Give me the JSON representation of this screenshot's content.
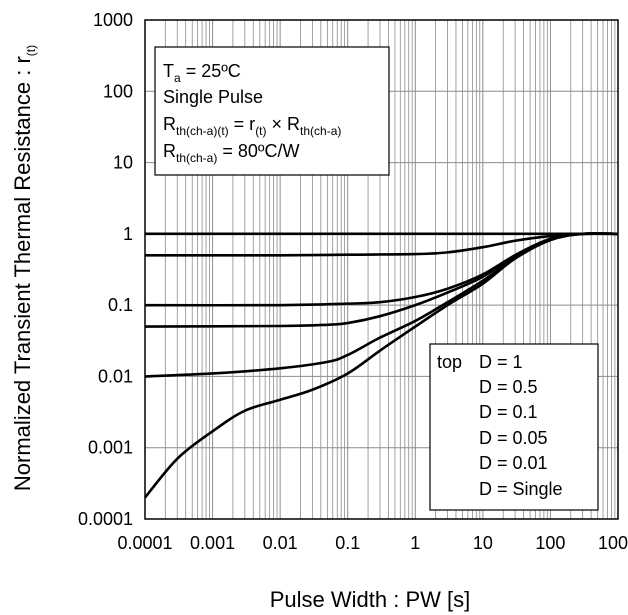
{
  "chart_data": {
    "type": "line",
    "xlabel": "Pulse Width : PW [s]",
    "ylabel_main": "Normalized Transient Thermal Resistance : r",
    "ylabel_sub": "(t)",
    "x_scale": "log",
    "y_scale": "log",
    "xlim": [
      0.0001,
      1000
    ],
    "ylim": [
      0.0001,
      1000
    ],
    "x_ticks": [
      "0.0001",
      "0.001",
      "0.01",
      "0.1",
      "1",
      "10",
      "100",
      "1000"
    ],
    "y_ticks": [
      "1000",
      "100",
      "10",
      "1",
      "0.1",
      "0.01",
      "0.001",
      "0.0001"
    ],
    "grid": true,
    "info_box": {
      "line1_main": "T",
      "line1_sub": "a",
      "line1_rest": " = 25ºC",
      "line2": "Single Pulse",
      "line3_a": "R",
      "line3_a_sub": "th(ch-a)(t)",
      "line3_b": " = r",
      "line3_b_sub": "(t)",
      "line3_c": " × R",
      "line3_c_sub": "th(ch-a)",
      "line4_a": "R",
      "line4_a_sub": "th(ch-a)",
      "line4_b": " = 80ºC/W"
    },
    "legend": {
      "placement": "bottom-right",
      "prefix": "top",
      "entries": [
        "D = 1",
        "D = 0.5",
        "D = 0.1",
        "D = 0.05",
        "D = 0.01",
        "D = Single"
      ]
    },
    "series": [
      {
        "label": "D = 1",
        "x": [
          0.0001,
          1000
        ],
        "y": [
          1,
          1
        ]
      },
      {
        "label": "D = 0.5",
        "x": [
          0.0001,
          0.01,
          0.1,
          1,
          3,
          10,
          30,
          100,
          300,
          1000
        ],
        "y": [
          0.5,
          0.5,
          0.51,
          0.52,
          0.55,
          0.65,
          0.8,
          0.93,
          1,
          1
        ]
      },
      {
        "label": "D = 0.1",
        "x": [
          0.0001,
          0.01,
          0.1,
          0.3,
          1,
          3,
          10,
          30,
          100,
          300,
          1000
        ],
        "y": [
          0.1,
          0.1,
          0.105,
          0.11,
          0.13,
          0.17,
          0.27,
          0.5,
          0.85,
          1,
          1
        ]
      },
      {
        "label": "D = 0.05",
        "x": [
          0.0001,
          0.01,
          0.05,
          0.1,
          0.3,
          1,
          3,
          10,
          30,
          100,
          300,
          1000
        ],
        "y": [
          0.05,
          0.051,
          0.053,
          0.056,
          0.07,
          0.1,
          0.15,
          0.25,
          0.5,
          0.85,
          1,
          1
        ]
      },
      {
        "label": "D = 0.01",
        "x": [
          0.0001,
          0.001,
          0.01,
          0.05,
          0.1,
          0.3,
          1,
          3,
          10,
          30,
          100,
          300,
          1000
        ],
        "y": [
          0.01,
          0.011,
          0.013,
          0.016,
          0.02,
          0.035,
          0.06,
          0.11,
          0.22,
          0.46,
          0.82,
          1,
          1
        ]
      },
      {
        "label": "D = Single",
        "x": [
          0.0001,
          0.0003,
          0.001,
          0.003,
          0.01,
          0.03,
          0.1,
          0.3,
          1,
          3,
          10,
          30,
          100,
          300,
          1000
        ],
        "y": [
          0.0002,
          0.0007,
          0.0017,
          0.0033,
          0.0047,
          0.0065,
          0.011,
          0.023,
          0.05,
          0.1,
          0.2,
          0.45,
          0.82,
          1,
          1
        ]
      }
    ]
  },
  "style": {
    "line_color": "#000000",
    "grid_color": "#8c8c8c",
    "background": "#ffffff"
  }
}
